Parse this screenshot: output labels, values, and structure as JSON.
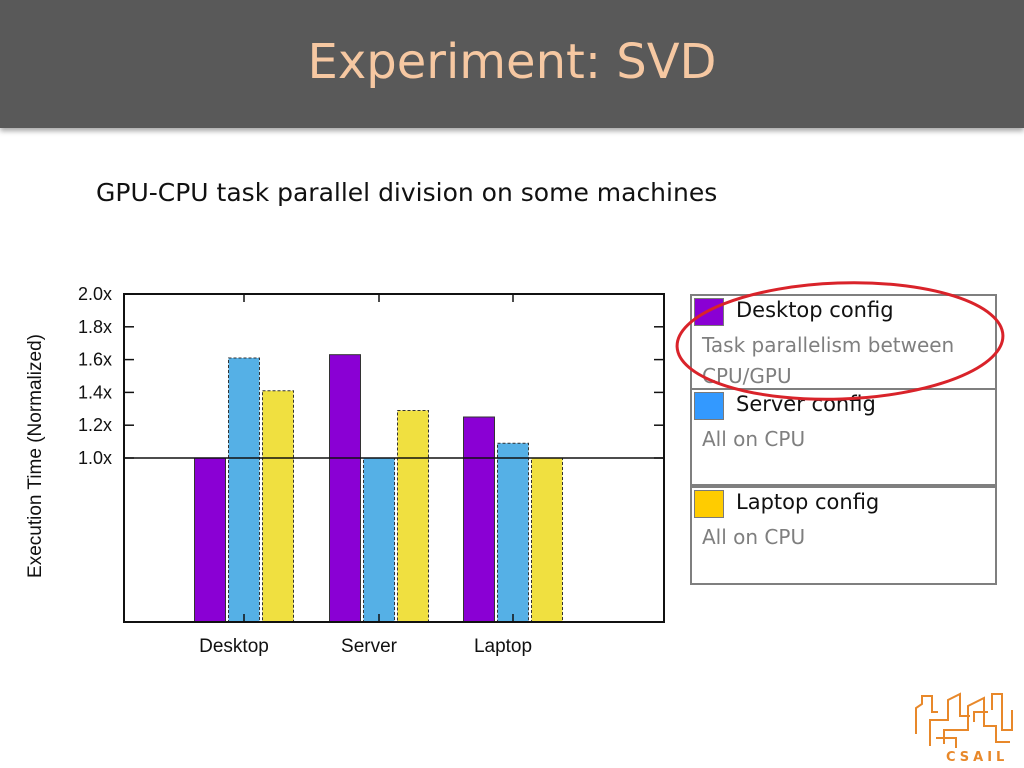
{
  "slide": {
    "title": "Experiment: SVD",
    "subtitle": "GPU-CPU task parallel division on some machines"
  },
  "colors": {
    "title_bar": "#595959",
    "title_text": "#f6c8a2",
    "purple": "#8a00d4",
    "blue": "#55b0e6",
    "yellow": "#f0e040",
    "highlight": "#d9232a",
    "logo": "#e8882a"
  },
  "chart_data": {
    "type": "bar",
    "categories": [
      "Desktop",
      "Server",
      "Laptop"
    ],
    "series": [
      {
        "color": "#8a00d4",
        "dashed": false,
        "values": [
          1.0,
          1.63,
          1.25
        ]
      },
      {
        "color": "#55b0e6",
        "dashed": true,
        "values": [
          1.61,
          1.0,
          1.09
        ]
      },
      {
        "color": "#f0e040",
        "dashed": true,
        "values": [
          1.41,
          1.29,
          1.0
        ]
      }
    ],
    "ylabel": "Execution Time (Normalized)",
    "yticks": [
      {
        "value": 2.0,
        "label": "2.0x"
      },
      {
        "value": 1.8,
        "label": "1.8x"
      },
      {
        "value": 1.6,
        "label": "1.6x"
      },
      {
        "value": 1.4,
        "label": "1.4x"
      },
      {
        "value": 1.2,
        "label": "1.2x"
      },
      {
        "value": 1.0,
        "label": "1.0x"
      }
    ],
    "ylim": [
      0.0,
      2.0
    ],
    "reference_line": 1.0,
    "grid": false
  },
  "legend": [
    {
      "name": "Desktop config",
      "description": "Task parallelism between CPU/GPU",
      "color": "#8a00d4"
    },
    {
      "name": "Server config",
      "description": "All on CPU",
      "color": "#3399ff"
    },
    {
      "name": "Laptop config",
      "description": "All on CPU",
      "color": "#ffcc00"
    }
  ],
  "logo": {
    "text": "CSAIL"
  }
}
